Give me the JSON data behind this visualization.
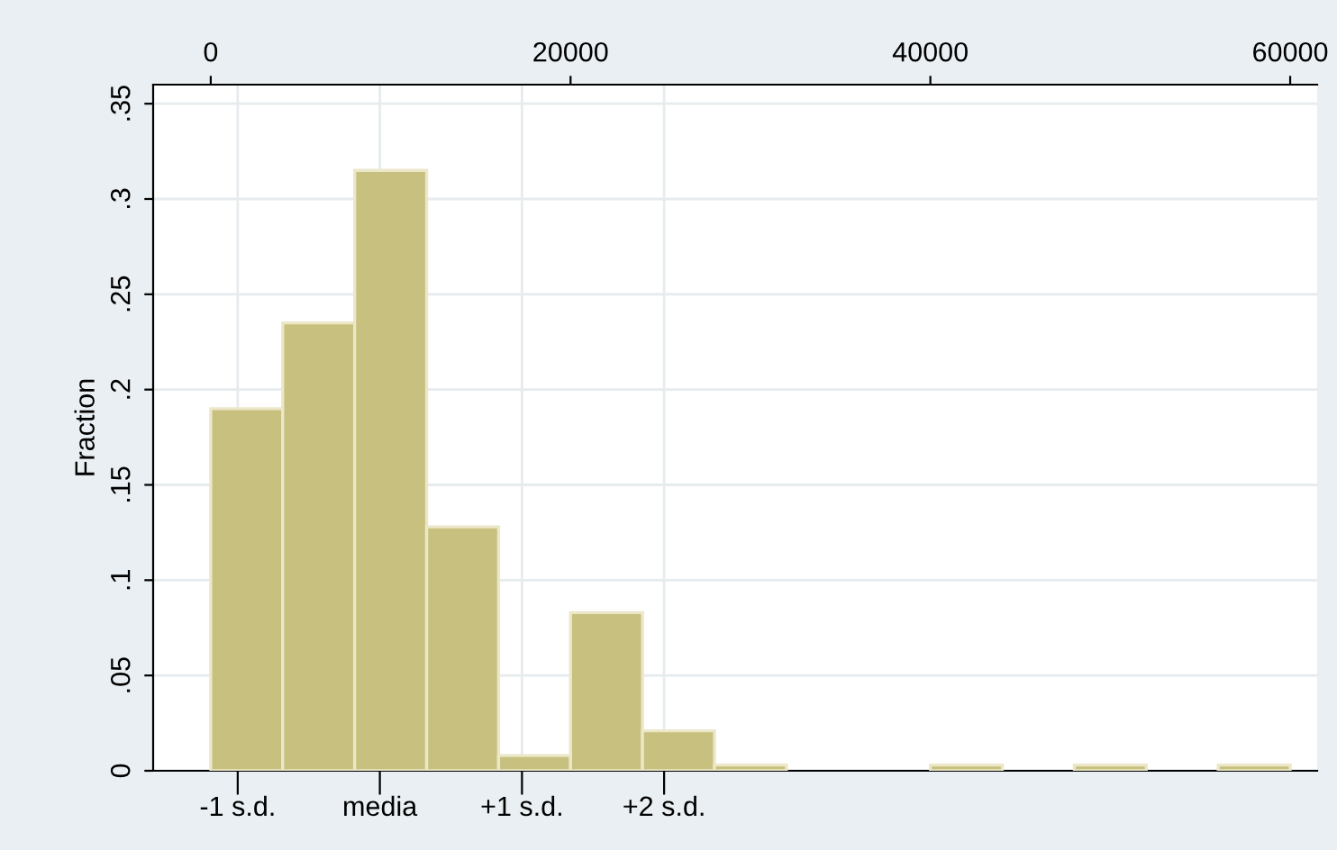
{
  "chart_data": {
    "type": "histogram",
    "ylabel": "Fraction",
    "bins": [
      0,
      4000,
      8000,
      12000,
      16000,
      20000,
      24000,
      28000,
      32000,
      36000,
      40000,
      44000,
      48000,
      52000,
      56000,
      60000
    ],
    "values": [
      0.19,
      0.235,
      0.315,
      0.128,
      0.008,
      0.083,
      0.021,
      0.003,
      0,
      0,
      0.003,
      0,
      0.003,
      0,
      0.003
    ],
    "color": "#c8c07e",
    "xlim": [
      -3200,
      61500
    ],
    "xticks": [
      0,
      20000,
      40000,
      60000
    ],
    "ref_lines": [
      {
        "axis": "x",
        "value": 1500,
        "label": "-1 s.d.",
        "color": "#e6ebee"
      },
      {
        "axis": "x",
        "value": 9400,
        "label": "media",
        "color": "#e6ebee"
      },
      {
        "axis": "x",
        "value": 17300,
        "label": "+1 s.d.",
        "color": "#e6ebee"
      },
      {
        "axis": "x",
        "value": 25200,
        "label": "+2 s.d.",
        "color": "#e6ebee"
      }
    ],
    "ylim": [
      0,
      0.36
    ],
    "yticks": [
      {
        "value": 0,
        "label": "0"
      },
      {
        "value": 0.05,
        "label": ".05"
      },
      {
        "value": 0.1,
        "label": ".1"
      },
      {
        "value": 0.15,
        "label": ".15"
      },
      {
        "value": 0.2,
        "label": ".2"
      },
      {
        "value": 0.25,
        "label": ".25"
      },
      {
        "value": 0.3,
        "label": ".3"
      },
      {
        "value": 0.35,
        "label": ".35"
      }
    ],
    "grid": "y"
  }
}
